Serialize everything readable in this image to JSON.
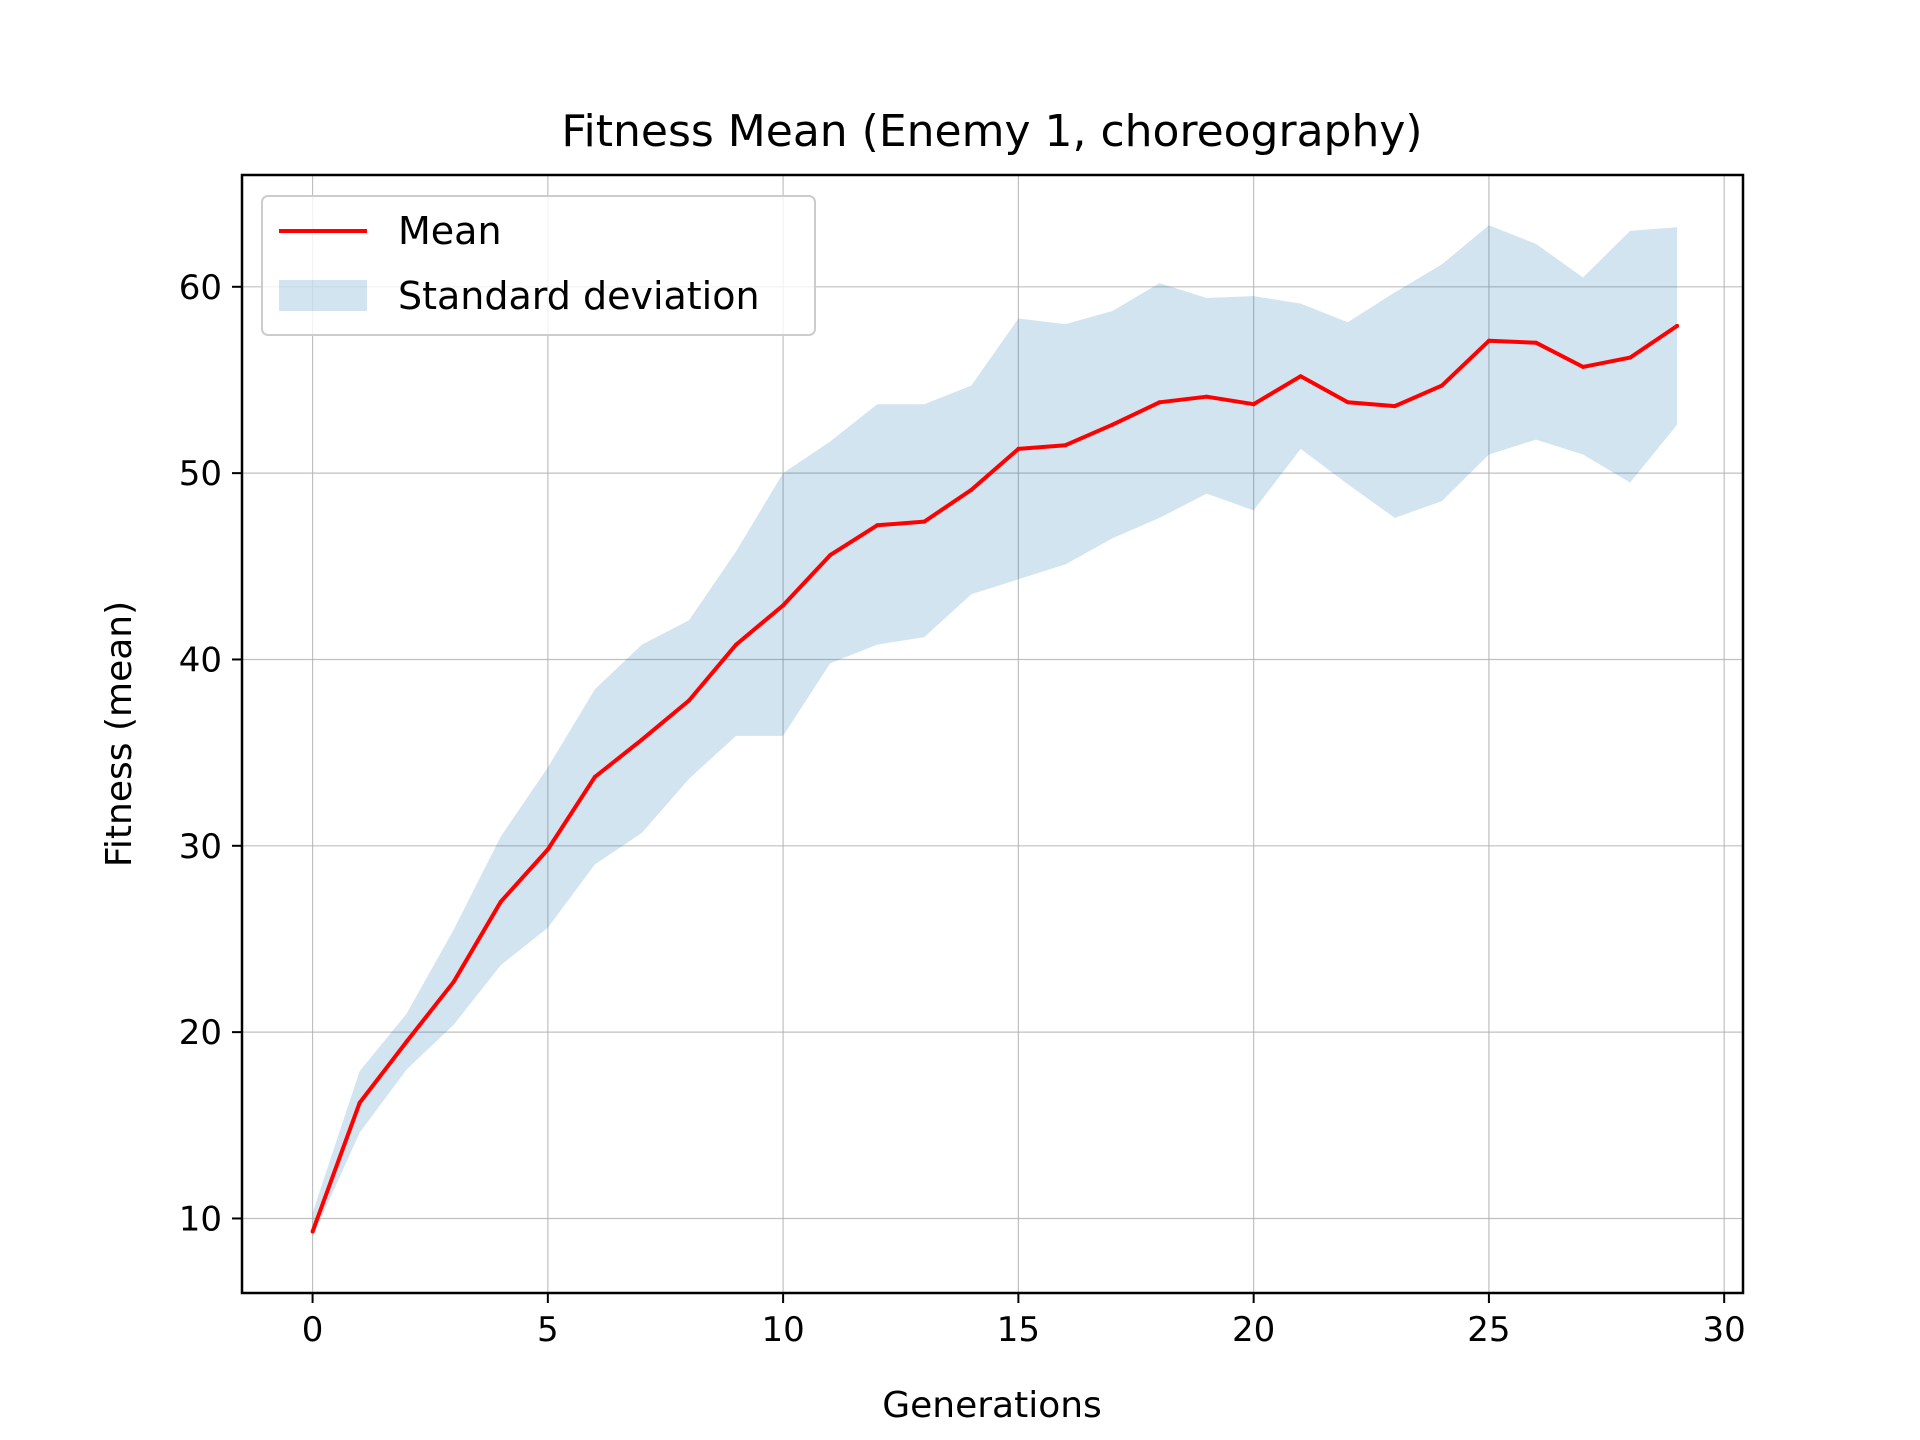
{
  "chart_data": {
    "type": "line",
    "title": "Fitness Mean (Enemy 1, choreography)",
    "xlabel": "Generations",
    "ylabel": "Fitness (mean)",
    "xlim": [
      -1.5,
      30.4
    ],
    "ylim": [
      6,
      66
    ],
    "xticks": [
      0,
      5,
      10,
      15,
      20,
      25,
      30
    ],
    "yticks": [
      10,
      20,
      30,
      40,
      50,
      60
    ],
    "grid": true,
    "legend_position": "top-left",
    "x": [
      0,
      1,
      2,
      3,
      4,
      5,
      6,
      7,
      8,
      9,
      10,
      11,
      12,
      13,
      14,
      15,
      16,
      17,
      18,
      19,
      20,
      21,
      22,
      23,
      24,
      25,
      26,
      27,
      28,
      29
    ],
    "series": [
      {
        "name": "Mean",
        "color": "#ff0000",
        "values": [
          9.3,
          16.2,
          19.5,
          22.7,
          27.0,
          29.8,
          33.7,
          35.7,
          37.8,
          40.8,
          42.9,
          45.6,
          47.2,
          47.4,
          49.1,
          51.3,
          51.5,
          52.6,
          53.8,
          54.1,
          53.7,
          55.2,
          53.8,
          53.6,
          54.7,
          57.1,
          57.0,
          55.7,
          56.2,
          57.9
        ]
      },
      {
        "name": "Standard deviation",
        "color": "#1f77b4",
        "upper": [
          10.3,
          17.9,
          21.0,
          25.5,
          30.5,
          34.2,
          38.4,
          40.8,
          42.1,
          45.8,
          50.0,
          51.7,
          53.7,
          53.7,
          54.7,
          58.3,
          58.0,
          58.7,
          60.2,
          59.4,
          59.5,
          59.1,
          58.1,
          59.7,
          61.2,
          63.3,
          62.3,
          60.5,
          63.0,
          63.2
        ],
        "lower": [
          9.0,
          14.6,
          18.0,
          20.4,
          23.6,
          25.6,
          29.0,
          30.7,
          33.6,
          35.9,
          35.9,
          39.8,
          40.8,
          41.2,
          43.5,
          44.3,
          45.1,
          46.5,
          47.6,
          48.9,
          48.0,
          51.3,
          49.4,
          47.6,
          48.5,
          51.0,
          51.8,
          51.0,
          49.5,
          52.6
        ]
      }
    ]
  }
}
